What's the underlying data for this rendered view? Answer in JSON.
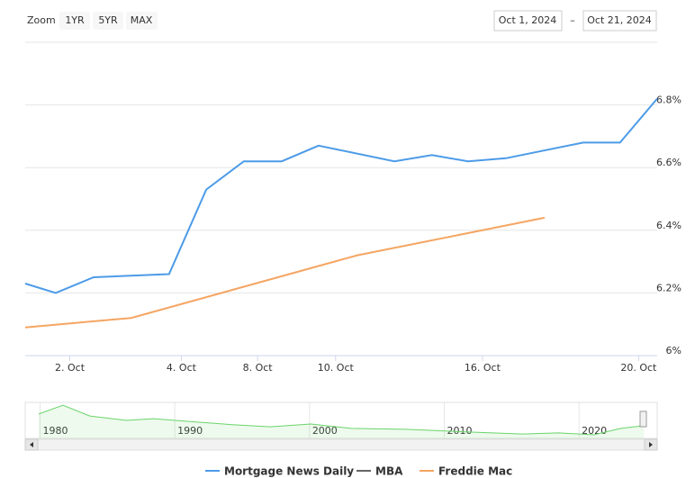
{
  "zoom": {
    "label": "Zoom",
    "buttons": [
      "1YR",
      "5YR",
      "MAX"
    ]
  },
  "range": {
    "from": "Oct 1, 2024",
    "separator": "–",
    "to": "Oct 21, 2024"
  },
  "chart_data": [
    {
      "type": "line",
      "xlim": [
        0,
        17
      ],
      "xticks": [
        {
          "value": 1.2,
          "label": "2. Oct"
        },
        {
          "value": 4.2,
          "label": "4. Oct"
        },
        {
          "value": 6.25,
          "label": "8. Oct"
        },
        {
          "value": 8.35,
          "label": "10. Oct"
        },
        {
          "value": 12.3,
          "label": "16. Oct"
        },
        {
          "value": 16.5,
          "label": "20. Oct"
        }
      ],
      "ylim": [
        6,
        7
      ],
      "yticks": [
        {
          "value": 6,
          "label": "6%"
        },
        {
          "value": 6.2,
          "label": "6.2%"
        },
        {
          "value": 6.4,
          "label": "6.4%"
        },
        {
          "value": 6.6,
          "label": "6.6%"
        },
        {
          "value": 6.8,
          "label": "6.8%"
        }
      ],
      "grid": true,
      "legend": "bottom",
      "series": [
        {
          "name": "Mortgage News Daily",
          "color": "#4c9be8",
          "x": [
            0,
            0.82,
            1.84,
            3.87,
            4.87,
            5.88,
            6.9,
            7.89,
            9.93,
            10.94,
            11.91,
            12.93,
            15.01,
            16.0,
            17
          ],
          "values": [
            6.23,
            6.2,
            6.25,
            6.26,
            6.53,
            6.62,
            6.62,
            6.67,
            6.62,
            6.64,
            6.62,
            6.63,
            6.68,
            6.68,
            6.82
          ]
        },
        {
          "name": "MBA",
          "color": "#666666",
          "x": [],
          "values": []
        },
        {
          "name": "Freddie Mac",
          "color": "#f5a562",
          "x": [
            0,
            2.85,
            8.93,
            13.97
          ],
          "values": [
            6.09,
            6.12,
            6.32,
            6.44
          ]
        }
      ]
    },
    {
      "type": "area",
      "xlim": [
        1978.9,
        2025.8
      ],
      "xticks": [
        1980,
        1990,
        2000,
        2010,
        2020
      ],
      "ylim": [
        2,
        19
      ],
      "color": "#6bd46b",
      "x": [
        1979.9,
        1981.7,
        1983.7,
        1986.4,
        1988.4,
        1991.7,
        1994.4,
        1997.1,
        2000.1,
        2003.1,
        2007.1,
        2011.8,
        2015.8,
        2018.5,
        2021.1,
        2023.1,
        2024.8
      ],
      "values": [
        13.5,
        17.7,
        12.6,
        10.5,
        11.3,
        9.7,
        8.4,
        7.5,
        8.8,
        6.7,
        6.3,
        5.0,
        4.1,
        4.6,
        3.7,
        6.7,
        8.0
      ]
    }
  ]
}
